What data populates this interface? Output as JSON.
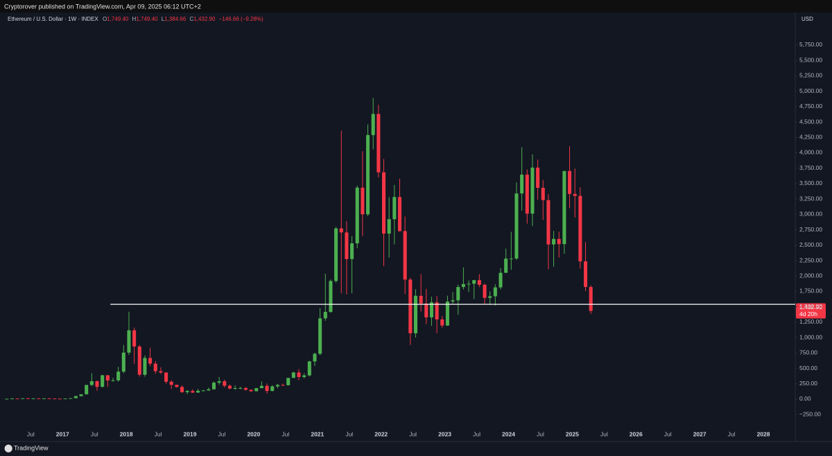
{
  "header": {
    "publisher_line": "Cryptorover published on TradingView.com, Apr 09, 2025 06:12 UTC+2"
  },
  "chart_data": {
    "type": "candlestick",
    "title": "Ethereum / U.S. Dollar · 1W · INDEX",
    "legend_ohlc": [
      {
        "label": "O",
        "value": "1,749.40"
      },
      {
        "label": "H",
        "value": "1,749.40"
      },
      {
        "label": "L",
        "value": "1,384.66"
      },
      {
        "label": "C",
        "value": "1,432.90"
      }
    ],
    "change": "−146.66 (−9.28%)",
    "currency": "USD",
    "up_color": "#4caf50",
    "down_color": "#f23645",
    "x": [
      "2016-02",
      "2016-03",
      "2016-04",
      "2016-05",
      "2016-06",
      "2016-07",
      "2016-08",
      "2016-09",
      "2016-10",
      "2016-11",
      "2016-12",
      "2017-01",
      "2017-02",
      "2017-03",
      "2017-04",
      "2017-05",
      "2017-06",
      "2017-07",
      "2017-08",
      "2017-09",
      "2017-10",
      "2017-11",
      "2017-12",
      "2018-01",
      "2018-02",
      "2018-03",
      "2018-04",
      "2018-05",
      "2018-06",
      "2018-07",
      "2018-08",
      "2018-09",
      "2018-10",
      "2018-11",
      "2018-12",
      "2019-01",
      "2019-02",
      "2019-03",
      "2019-04",
      "2019-05",
      "2019-06",
      "2019-07",
      "2019-08",
      "2019-09",
      "2019-10",
      "2019-11",
      "2019-12",
      "2020-01",
      "2020-02",
      "2020-03",
      "2020-04",
      "2020-05",
      "2020-06",
      "2020-07",
      "2020-08",
      "2020-09",
      "2020-10",
      "2020-11",
      "2020-12",
      "2021-01",
      "2021-02",
      "2021-03",
      "2021-04",
      "2021-05",
      "2021-06",
      "2021-07",
      "2021-08",
      "2021-09",
      "2021-10",
      "2021-11",
      "2021-12",
      "2022-01",
      "2022-02",
      "2022-03",
      "2022-04",
      "2022-05",
      "2022-06",
      "2022-07",
      "2022-08",
      "2022-09",
      "2022-10",
      "2022-11",
      "2022-12",
      "2023-01",
      "2023-02",
      "2023-03",
      "2023-04",
      "2023-05",
      "2023-06",
      "2023-07",
      "2023-08",
      "2023-09",
      "2023-10",
      "2023-11",
      "2023-12",
      "2024-01",
      "2024-02",
      "2024-03",
      "2024-04",
      "2024-05",
      "2024-06",
      "2024-07",
      "2024-08",
      "2024-09",
      "2024-10",
      "2024-11",
      "2024-12",
      "2025-01",
      "2025-02",
      "2025-03",
      "2025-04"
    ],
    "open": [
      2.2,
      6.4,
      11.4,
      8.8,
      14.0,
      12.4,
      12.6,
      12.0,
      13.2,
      10.9,
      8.6,
      8.0,
      10.7,
      15.6,
      50,
      79,
      231,
      292,
      201,
      388,
      303,
      305,
      447,
      756,
      1118,
      855,
      397,
      669,
      577,
      455,
      433,
      283,
      233,
      198,
      114,
      133,
      107,
      136,
      141,
      160,
      268,
      291,
      218,
      172,
      180,
      182,
      152,
      129,
      179,
      217,
      133,
      207,
      231,
      226,
      345,
      434,
      360,
      386,
      613,
      737,
      1312,
      1417,
      1919,
      2773,
      2707,
      2275,
      2530,
      3434,
      3001,
      4288,
      4631,
      3683,
      2688,
      2922,
      3282,
      2729,
      1942,
      1070,
      1678,
      1553,
      1328,
      1572,
      1295,
      1196,
      1585,
      1605,
      1821,
      1869,
      1874,
      1933,
      1857,
      1645,
      1671,
      1815,
      2052,
      2282,
      2283,
      3340,
      3645,
      3012,
      3760,
      3432,
      3232,
      2512,
      2602,
      2518,
      3705,
      3332,
      3300,
      2237,
      1822
    ],
    "high": [
      6.7,
      15.3,
      11.9,
      14.7,
      21.5,
      14.8,
      13.0,
      14.3,
      13.3,
      11.5,
      9.0,
      11.5,
      16.5,
      55,
      80,
      232,
      420,
      302,
      397,
      393,
      347,
      523,
      880,
      1420,
      1162,
      880,
      710,
      835,
      619,
      518,
      436,
      307,
      234,
      225,
      148,
      161,
      166,
      148,
      187,
      287,
      361,
      318,
      238,
      223,
      199,
      195,
      155,
      181,
      287,
      253,
      227,
      248,
      253,
      345,
      443,
      488,
      420,
      622,
      755,
      1477,
      2036,
      1943,
      2797,
      4362,
      2891,
      2645,
      3467,
      4027,
      4460,
      4891,
      4778,
      3900,
      3280,
      3480,
      3580,
      2966,
      1972,
      1785,
      2030,
      1790,
      1664,
      1677,
      1350,
      1680,
      1740,
      1860,
      2140,
      1928,
      1930,
      2030,
      1880,
      1750,
      1866,
      2130,
      2445,
      2717,
      3520,
      4090,
      3730,
      3975,
      3890,
      3560,
      3330,
      2730,
      2720,
      3680,
      4107,
      3745,
      3440,
      2550,
      1850
    ],
    "low": [
      2.1,
      6.3,
      6.9,
      8.4,
      10.1,
      9.9,
      10.3,
      11.5,
      10.3,
      8.6,
      6.1,
      8.0,
      10.4,
      15.3,
      43,
      76,
      212,
      136,
      188,
      199,
      286,
      285,
      420,
      718,
      575,
      366,
      365,
      536,
      414,
      410,
      252,
      167,
      188,
      102,
      82,
      101,
      102,
      127,
      137,
      156,
      234,
      191,
      163,
      153,
      159,
      138,
      117,
      126,
      175,
      90,
      128,
      177,
      216,
      225,
      344,
      309,
      337,
      369,
      540,
      715,
      1272,
      1400,
      1893,
      1719,
      1700,
      1718,
      2450,
      2652,
      2970,
      4056,
      3600,
      2160,
      2301,
      2514,
      2720,
      1707,
      881,
      1000,
      1421,
      1220,
      1190,
      1073,
      1160,
      1190,
      1550,
      1370,
      1780,
      1740,
      1626,
      1820,
      1550,
      1530,
      1520,
      1780,
      2050,
      2100,
      2260,
      3060,
      2850,
      2810,
      3240,
      2910,
      2110,
      2150,
      2300,
      2360,
      3100,
      2950,
      2120,
      1755,
      1385
    ],
    "close": [
      6.4,
      11.4,
      8.8,
      14.0,
      12.4,
      12.6,
      12.0,
      13.2,
      10.9,
      8.6,
      8.0,
      10.7,
      15.6,
      50,
      79,
      231,
      292,
      201,
      388,
      303,
      305,
      447,
      756,
      1118,
      855,
      397,
      669,
      577,
      455,
      433,
      283,
      233,
      198,
      114,
      133,
      107,
      136,
      141,
      160,
      268,
      291,
      218,
      172,
      180,
      182,
      152,
      129,
      179,
      217,
      133,
      207,
      231,
      226,
      345,
      434,
      360,
      386,
      613,
      737,
      1312,
      1417,
      1919,
      2773,
      2707,
      2275,
      2530,
      3434,
      3001,
      4288,
      4631,
      3683,
      2688,
      2922,
      3282,
      2729,
      1942,
      1070,
      1678,
      1553,
      1328,
      1572,
      1295,
      1196,
      1585,
      1605,
      1821,
      1869,
      1874,
      1933,
      1857,
      1645,
      1671,
      1815,
      2052,
      2282,
      2283,
      3340,
      3645,
      3012,
      3760,
      3432,
      3232,
      2512,
      2602,
      2518,
      3705,
      3332,
      3300,
      2237,
      1822,
      1432.9
    ],
    "xlim": [
      "2016-02",
      "2028-07"
    ],
    "xticks": [
      {
        "value": "2016-07",
        "label": "Jul"
      },
      {
        "value": "2017-01",
        "label": "2017"
      },
      {
        "value": "2017-07",
        "label": "Jul"
      },
      {
        "value": "2018-01",
        "label": "2018"
      },
      {
        "value": "2018-07",
        "label": "Jul"
      },
      {
        "value": "2019-01",
        "label": "2019"
      },
      {
        "value": "2019-07",
        "label": "Jul"
      },
      {
        "value": "2020-01",
        "label": "2020"
      },
      {
        "value": "2020-07",
        "label": "Jul"
      },
      {
        "value": "2021-01",
        "label": "2021"
      },
      {
        "value": "2021-07",
        "label": "Jul"
      },
      {
        "value": "2022-01",
        "label": "2022"
      },
      {
        "value": "2022-07",
        "label": "Jul"
      },
      {
        "value": "2023-01",
        "label": "2023"
      },
      {
        "value": "2023-07",
        "label": "Jul"
      },
      {
        "value": "2024-01",
        "label": "2024"
      },
      {
        "value": "2024-07",
        "label": "Jul"
      },
      {
        "value": "2025-01",
        "label": "2025"
      },
      {
        "value": "2025-07",
        "label": "Jul"
      },
      {
        "value": "2026-01",
        "label": "2026"
      },
      {
        "value": "2026-07",
        "label": "Jul"
      },
      {
        "value": "2027-01",
        "label": "2027"
      },
      {
        "value": "2027-07",
        "label": "Jul"
      },
      {
        "value": "2028-01",
        "label": "2028"
      }
    ],
    "ylim": [
      -664,
      6256
    ],
    "yticks": [
      {
        "value": -250,
        "label": "−250.00"
      },
      {
        "value": 0,
        "label": "0.00"
      },
      {
        "value": 250,
        "label": "250.00"
      },
      {
        "value": 500,
        "label": "500.00"
      },
      {
        "value": 750,
        "label": "750.00"
      },
      {
        "value": 1000,
        "label": "1,000.00"
      },
      {
        "value": 1250,
        "label": "1,250.00"
      },
      {
        "value": 1500,
        "label": "1,500.00"
      },
      {
        "value": 1750,
        "label": "1,750.00"
      },
      {
        "value": 2000,
        "label": "2,000.00"
      },
      {
        "value": 2250,
        "label": "2,250.00"
      },
      {
        "value": 2500,
        "label": "2,500.00"
      },
      {
        "value": 2750,
        "label": "2,750.00"
      },
      {
        "value": 3000,
        "label": "3,000.00"
      },
      {
        "value": 3250,
        "label": "3,250.00"
      },
      {
        "value": 3500,
        "label": "3,500.00"
      },
      {
        "value": 3750,
        "label": "3,750.00"
      },
      {
        "value": 4000,
        "label": "4,000.00"
      },
      {
        "value": 4250,
        "label": "4,250.00"
      },
      {
        "value": 4500,
        "label": "4,500.00"
      },
      {
        "value": 4750,
        "label": "4,750.00"
      },
      {
        "value": 5000,
        "label": "5,000.00"
      },
      {
        "value": 5250,
        "label": "5,250.00"
      },
      {
        "value": 5500,
        "label": "5,500.00"
      },
      {
        "value": 5750,
        "label": "5,750.00"
      }
    ],
    "grid": false,
    "horizontal_line": {
      "value": 1540,
      "start": "2017-10",
      "color": "#ffffff"
    },
    "last_price": {
      "value": 1432.9,
      "label": "1,432.90",
      "countdown": "4d 20h"
    }
  },
  "footer": {
    "brand": "TradingView"
  }
}
